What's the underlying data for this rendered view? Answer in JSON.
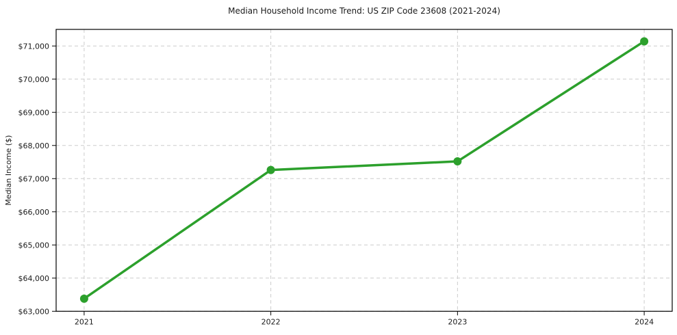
{
  "figure": {
    "background": "#ffffff"
  },
  "chart_data": {
    "type": "line",
    "title": "Median Household Income Trend: US ZIP Code 23608 (2021-2024)",
    "xlabel": "",
    "ylabel": "Median Income ($)",
    "categories": [
      "2021",
      "2022",
      "2023",
      "2024"
    ],
    "x": [
      2021,
      2022,
      2023,
      2024
    ],
    "series": [
      {
        "name": "Median Household Income",
        "values": [
          63380,
          67260,
          67520,
          71140
        ]
      }
    ],
    "xlim": [
      2020.85,
      2024.15
    ],
    "ylim": [
      63000,
      71500
    ],
    "yticks": [
      63000,
      64000,
      65000,
      66000,
      67000,
      68000,
      69000,
      70000,
      71000
    ],
    "ytick_labels": [
      "$63,000",
      "$64,000",
      "$65,000",
      "$66,000",
      "$67,000",
      "$68,000",
      "$69,000",
      "$70,000",
      "$71,000"
    ],
    "grid": true,
    "grid_style": "dashed",
    "legend": false,
    "line_color": "#2ca02c",
    "marker": "circle",
    "colors": {
      "grid": "#cccccc",
      "spine": "#000000",
      "text": "#1a1a1a",
      "background": "#ffffff"
    }
  }
}
